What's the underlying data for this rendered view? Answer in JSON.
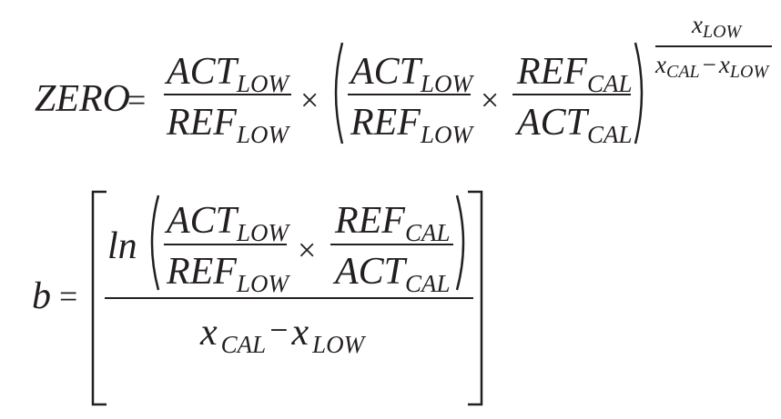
{
  "eq1": {
    "lhs": "ZERO",
    "equals": "=",
    "times": "×",
    "minus": "−",
    "act": "ACT",
    "ref": "REF",
    "low": "LOW",
    "cal": "CAL",
    "x": "x"
  },
  "eq2": {
    "lhs": "b",
    "equals": "=",
    "ln": "ln",
    "times": "×",
    "minus": "−",
    "act": "ACT",
    "ref": "REF",
    "low": "LOW",
    "cal": "CAL",
    "x": "x"
  }
}
